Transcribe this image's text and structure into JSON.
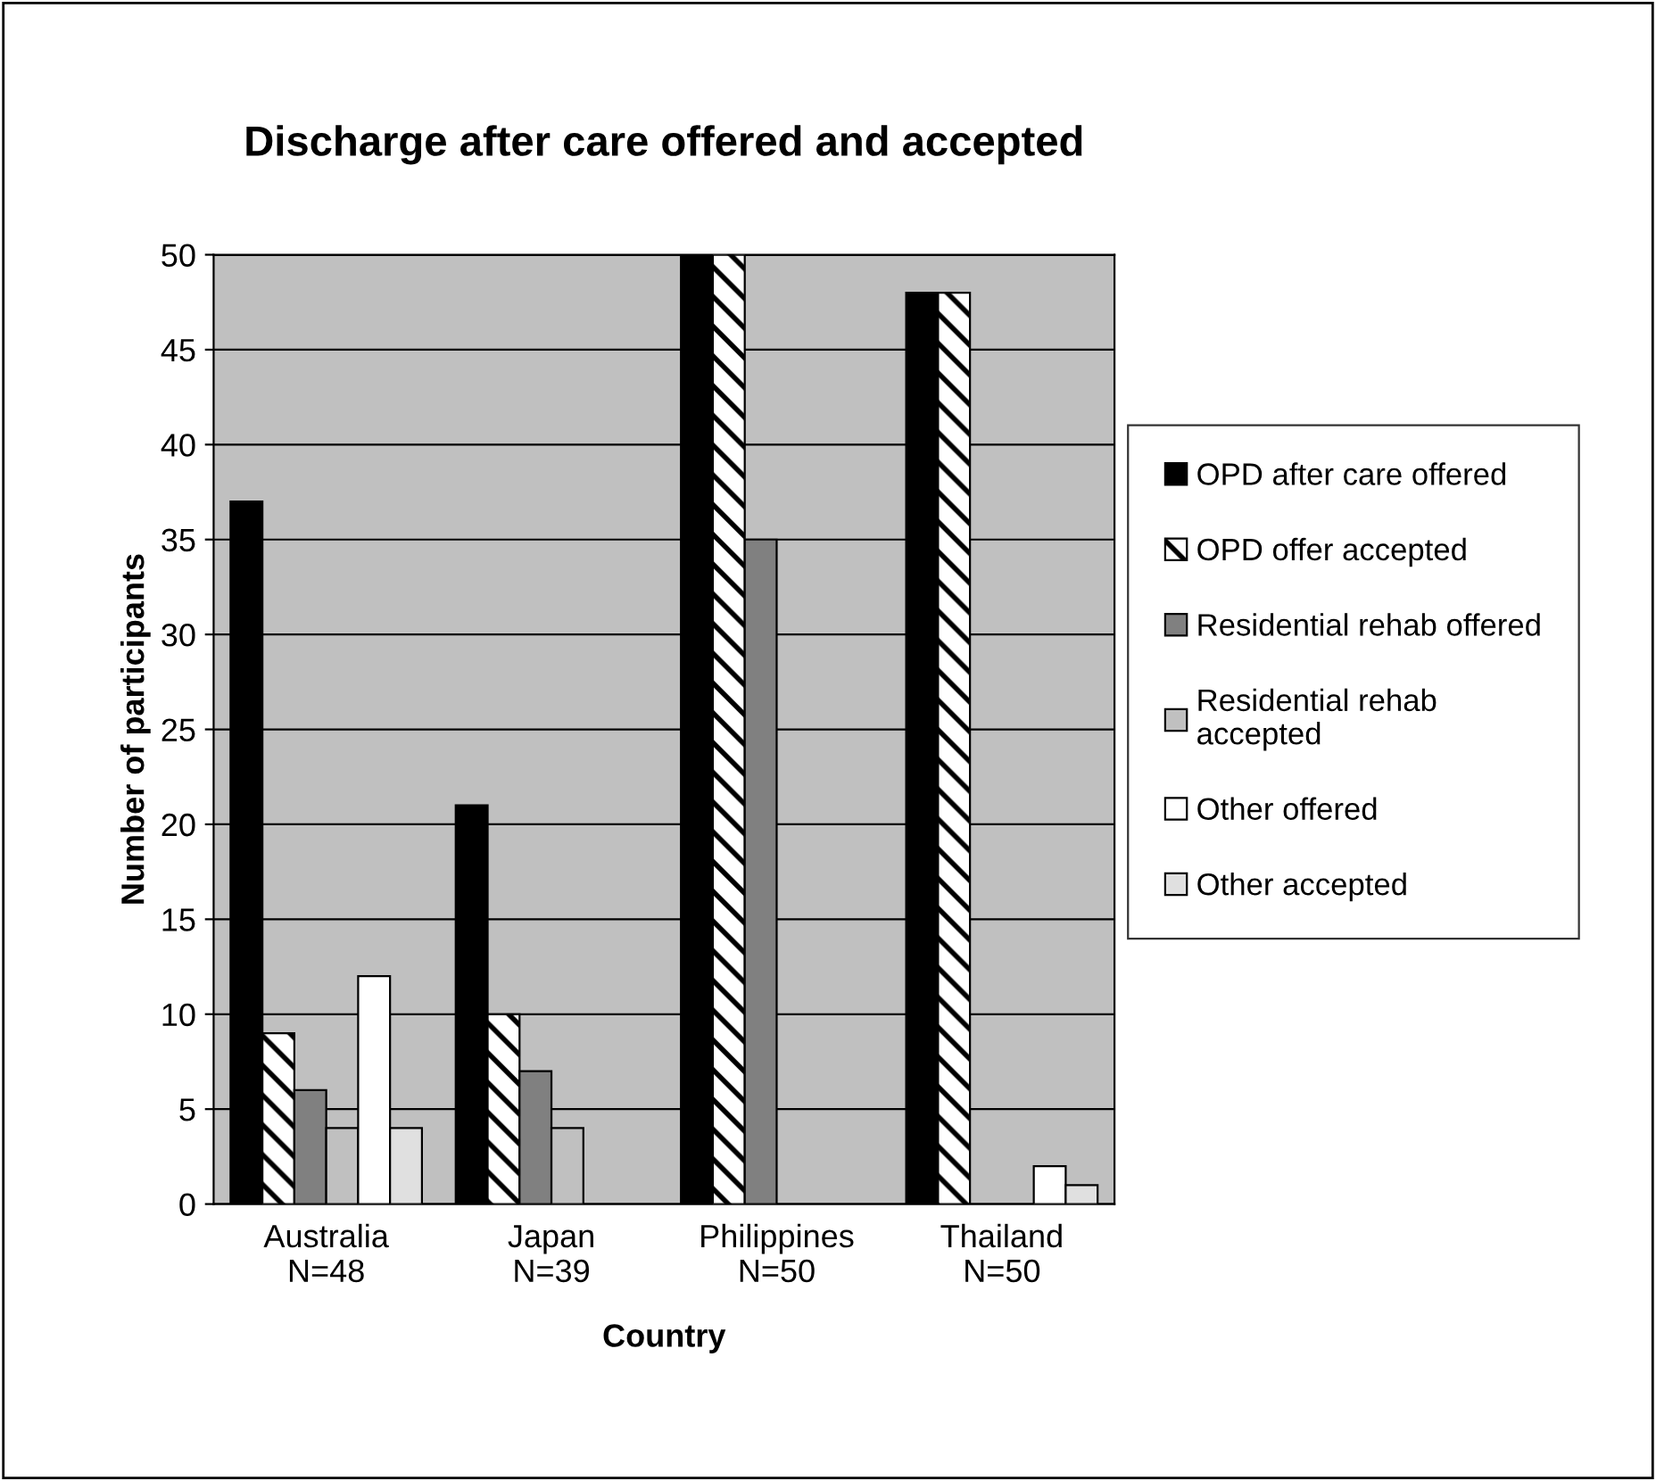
{
  "chart_data": {
    "type": "bar",
    "title": "Discharge after care offered and accepted",
    "xlabel": "Country",
    "ylabel": "Number of participants",
    "categories": [
      "Australia\nN=48",
      "Japan\nN=39",
      "Philippines\nN=50",
      "Thailand\nN=50"
    ],
    "series": [
      {
        "name": "OPD after care offered",
        "color": "#000000",
        "values": [
          37,
          21,
          50,
          48
        ]
      },
      {
        "name": "OPD offer accepted",
        "color": "#000000",
        "values": [
          9,
          10,
          50,
          48
        ]
      },
      {
        "name": "Residential rehab offered",
        "color": "#808080",
        "values": [
          6,
          7,
          35,
          null
        ]
      },
      {
        "name": "Residential rehab\naccepted",
        "color": "#c0c0c0",
        "values": [
          4,
          4,
          null,
          null
        ]
      },
      {
        "name": "Other offered",
        "color": "#ffffff",
        "values": [
          12,
          null,
          null,
          2
        ]
      },
      {
        "name": "Other accepted",
        "color": "#e0e0e0",
        "values": [
          4,
          null,
          null,
          1
        ]
      }
    ],
    "ylim": [
      0,
      50
    ],
    "yticks": [
      0,
      5,
      10,
      15,
      20,
      25,
      30,
      35,
      40,
      45,
      50
    ],
    "grid": "y",
    "legend": "right"
  }
}
